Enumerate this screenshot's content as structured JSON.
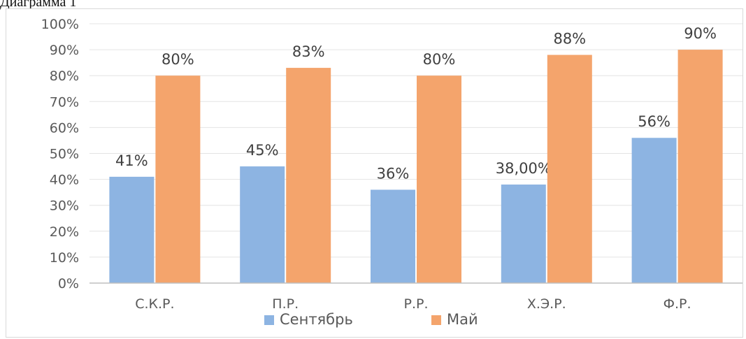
{
  "caption": "Диаграмма 1",
  "chart_data": {
    "type": "bar",
    "categories": [
      "С.К.Р.",
      "П.Р.",
      "Р.Р.",
      "Х.Э.Р.",
      "Ф.Р."
    ],
    "series": [
      {
        "name": "Сентябрь",
        "color": "#8db4e2",
        "values": [
          0.41,
          0.45,
          0.36,
          0.38,
          0.56
        ],
        "labels": [
          "41%",
          "45%",
          "36%",
          "38,00%",
          "56%"
        ]
      },
      {
        "name": "Май",
        "color": "#f4a46c",
        "values": [
          0.8,
          0.83,
          0.8,
          0.88,
          0.9
        ],
        "labels": [
          "80%",
          "83%",
          "80%",
          "88%",
          "90%"
        ]
      }
    ],
    "ylim": [
      0,
      1
    ],
    "yticks": [
      "0%",
      "10%",
      "20%",
      "30%",
      "40%",
      "50%",
      "60%",
      "70%",
      "80%",
      "90%",
      "100%"
    ],
    "grid": true,
    "legend_position": "bottom"
  }
}
